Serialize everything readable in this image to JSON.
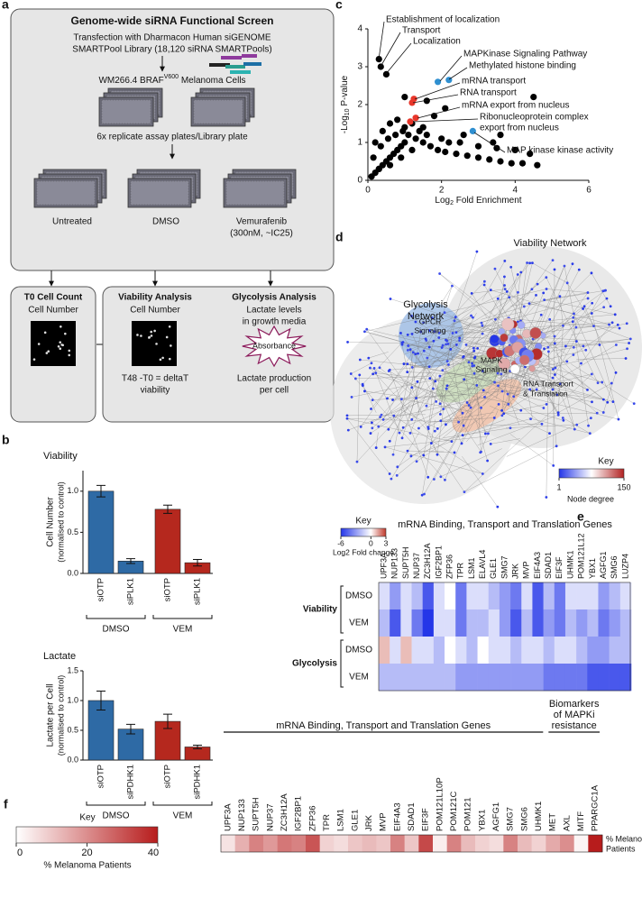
{
  "panel_labels": [
    "a",
    "b",
    "c",
    "d",
    "e",
    "f"
  ],
  "screen": {
    "title": "Genome-wide siRNA Functional Screen",
    "transfection": [
      "Transfection with Dharmacon Human siGENOME",
      "SMARTPool Library (18,120 siRNA SMARTPools)"
    ],
    "cells": {
      "pre": "WM266.4 BRAF",
      "sup": "V600",
      "post": " Melanoma Cells"
    },
    "replicates": "6x replicate assay plates/Library plate",
    "treatments": [
      "Untreated",
      "DMSO",
      "Vemurafenib"
    ],
    "dose": "(300nM, ~IC25)",
    "t0": {
      "title": "T0 Cell Count",
      "text": "Cell Number"
    },
    "viability": {
      "title": "Viability Analysis",
      "lines": [
        "Cell Number",
        "T48 -T0 = deltaT",
        "viability"
      ]
    },
    "glycolysis": {
      "title": "Glycolysis Analysis",
      "lines": [
        "Lactate levels",
        "in growth media",
        "Lactate production",
        "per cell"
      ],
      "badge": "Absorbance"
    }
  },
  "network": {
    "title": "Viability Network",
    "glycolysis": [
      "Glycolysis",
      "Network"
    ],
    "gpcr": [
      "GPCR",
      "Signaling"
    ],
    "mapk": [
      "MAPK",
      "Signaling"
    ],
    "rna": [
      "RNA Transport",
      "& Translation"
    ],
    "key": {
      "title": "Key",
      "zlim": [
        1,
        150
      ],
      "label": "Node degree",
      "colors": [
        "#2436e8",
        "#ffffff",
        "#b22222"
      ]
    }
  },
  "chart_data": [
    {
      "type": "bar",
      "title": "Viability",
      "ylabel": [
        "Cell Number",
        "(normalised to control)"
      ],
      "categories": [
        "siOTP",
        "siPLK1",
        "siOTP",
        "siPLK1"
      ],
      "values": [
        1.0,
        0.15,
        0.78,
        0.13
      ],
      "errors": [
        0.07,
        0.03,
        0.05,
        0.04
      ],
      "colors": [
        "#2e6aa5",
        "#2e6aa5",
        "#b5281e",
        "#b5281e"
      ],
      "groups": [
        "DMSO",
        "VEM"
      ],
      "ylim": [
        0,
        1.25
      ],
      "yticks": [
        {
          "value": 0,
          "label": "0.0"
        },
        0.5,
        {
          "value": 1,
          "label": "1.0"
        }
      ]
    },
    {
      "type": "bar",
      "title": "Lactate",
      "ylabel": [
        "Lactate per Cell",
        "(normalised to control)"
      ],
      "categories": [
        "siOTP",
        "siPDHK1",
        "siOTP",
        "siPDHK1"
      ],
      "values": [
        1.0,
        0.52,
        0.65,
        0.22
      ],
      "errors": [
        0.16,
        0.08,
        0.12,
        0.03
      ],
      "colors": [
        "#2e6aa5",
        "#2e6aa5",
        "#b5281e",
        "#b5281e"
      ],
      "groups": [
        "DMSO",
        "VEM"
      ],
      "ylim": [
        0,
        1.5
      ],
      "yticks": [
        {
          "value": 0,
          "label": "0.0"
        },
        0.5,
        {
          "value": 1,
          "label": "1.0"
        },
        1.5
      ]
    },
    {
      "type": "scatter",
      "xlabel": {
        "pre": "Log",
        "sub": "2",
        "post": " Fold Enrichment"
      },
      "ylabel": {
        "pre": "-Log",
        "sub": "10",
        "post": " P-value"
      },
      "xlim": [
        0,
        6
      ],
      "xticks": [
        0,
        2,
        4,
        6
      ],
      "ylim": [
        0,
        4
      ],
      "yticks": [
        0,
        1,
        2,
        3,
        4
      ],
      "series": [
        {
          "color": "#000000",
          "x": [
            0.1,
            0.2,
            0.3,
            0.4,
            0.5,
            0.6,
            0.7,
            0.8,
            0.9,
            1.0,
            0.15,
            0.35,
            0.55,
            0.75,
            0.95,
            1.1,
            1.3,
            1.5,
            1.7,
            1.9,
            2.1,
            2.4,
            2.7,
            3.0,
            3.3,
            3.6,
            3.9,
            4.2,
            4.6,
            0.2,
            0.4,
            0.6,
            0.8,
            1.0,
            1.2,
            1.4,
            1.6,
            2.0,
            2.5,
            3.0,
            3.5,
            4.0,
            4.4,
            0.3,
            0.6,
            0.9,
            1.2,
            1.5,
            1.8,
            2.2,
            2.6,
            3.4,
            0.3,
            0.35,
            0.5,
            1.0,
            1.6,
            4.5,
            2.1,
            3.6
          ],
          "y": [
            0.1,
            0.2,
            0.3,
            0.4,
            0.5,
            0.6,
            0.7,
            0.8,
            0.9,
            1.0,
            0.6,
            0.9,
            1.1,
            1.2,
            1.3,
            1.2,
            1.1,
            1.0,
            0.9,
            0.8,
            0.75,
            0.7,
            0.65,
            0.6,
            0.55,
            0.5,
            0.45,
            0.45,
            0.4,
            1.0,
            1.3,
            1.5,
            1.6,
            1.4,
            1.5,
            1.3,
            1.2,
            1.1,
            1.0,
            0.9,
            0.85,
            0.8,
            0.7,
            0.3,
            0.4,
            0.6,
            0.8,
            1.4,
            1.7,
            1.0,
            1.2,
            1.0,
            3.2,
            3.0,
            2.8,
            2.2,
            2.1,
            2.2,
            1.9,
            1.2
          ]
        },
        {
          "color": "#2f8fd0",
          "x": [
            1.9,
            2.2,
            2.85
          ],
          "y": [
            2.6,
            2.65,
            1.3
          ]
        },
        {
          "color": "#e8362a",
          "x": [
            1.25,
            1.2,
            1.3,
            1.15
          ],
          "y": [
            2.15,
            2.05,
            1.65,
            1.55
          ]
        }
      ],
      "annotations": [
        {
          "text": "Establishment of localization",
          "color": "#000000"
        },
        {
          "text": "Transport",
          "color": "#000000"
        },
        {
          "text": "Localization",
          "color": "#000000"
        },
        {
          "text": "MAPKinase Signaling Pathway",
          "color": "#1f5f9e"
        },
        {
          "text": "Methylated histone binding",
          "color": "#1f5f9e"
        },
        {
          "text": "mRNA transport",
          "color": "#d62a1e"
        },
        {
          "text": "RNA transport",
          "color": "#d62a1e"
        },
        {
          "text": "mRNA export from nucleus",
          "color": "#d62a1e"
        },
        {
          "text": "Ribonucleoprotein complex",
          "color": "#d62a1e"
        },
        {
          "text": "export from nucleus",
          "color": "#d62a1e"
        },
        {
          "text": "MAP kinase kinase activity",
          "color": "#1f5f9e"
        }
      ]
    },
    {
      "type": "heatmap",
      "title": "mRNA Binding, Transport and Translation Genes",
      "columns": [
        "UPF3A",
        "NUP133",
        "SUPT5H",
        "NUP37",
        "ZC3H12A",
        "IGF2BP1",
        "ZFP36",
        "TPR",
        "LSM1",
        "ELAVL4",
        "GLE1",
        "SMG7",
        "JRK",
        "MVP",
        "EIF4A3",
        "SDAD1",
        "EIF3F",
        "UHMK1",
        "POM121L12",
        "YBX1",
        "AGFG1",
        "SMG6",
        "LUZP4"
      ],
      "row_groups": [
        "Viability",
        "Glycolysis"
      ],
      "rows": [
        "DMSO",
        "VEM",
        "DMSO",
        "VEM"
      ],
      "values": [
        [
          -1,
          -3,
          -1,
          -2,
          -5,
          -1,
          0,
          -4,
          -1,
          -1,
          -2,
          -3,
          -4,
          -1,
          -5,
          -2,
          -4,
          -1,
          -1,
          -1,
          -3,
          -2,
          -1
        ],
        [
          -2,
          -5,
          -1,
          -4,
          -6,
          -1,
          -1,
          -4,
          -2,
          -2,
          -1,
          -3,
          -5,
          -2,
          -5,
          -3,
          -4,
          -2,
          -3,
          -2,
          -4,
          -3,
          -2
        ],
        [
          1,
          -1,
          1,
          -1,
          -1,
          -2,
          0,
          -1,
          -2,
          0,
          -1,
          -1,
          -2,
          -1,
          -1,
          -2,
          -1,
          -1,
          -2,
          -3,
          -3,
          -2,
          -2
        ],
        [
          -2,
          -2,
          -2,
          -2,
          -2,
          -2,
          -2,
          -3,
          -3,
          -3,
          -3,
          -3,
          -3,
          -3,
          -3,
          -4,
          -4,
          -4,
          -4,
          -5,
          -5,
          -5,
          -5
        ]
      ],
      "key_title": "Key",
      "colorbar_label": "Log2 Fold change",
      "zlim": [
        -6,
        3
      ],
      "zticks": [
        -6,
        0,
        3
      ],
      "colors": [
        "#2436e8",
        "#ffffff",
        "#c0392b"
      ]
    },
    {
      "type": "heatmap_groups",
      "column_groups": [
        {
          "title": [
            "mRNA Binding, Transport  and Translation Genes"
          ],
          "columns": [
            "UPF3A",
            "NUP133",
            "SUPT5H",
            "NUP37",
            "ZC3H12A",
            "IGF2BP1",
            "ZFP36",
            "TPR",
            "LSM1",
            "GLE1",
            "JRK",
            "MVP",
            "EIF4A3",
            "SDAD1",
            "EIF3F",
            "POM121L10P",
            "POM121C",
            "POM121",
            "YBX1",
            "AGFG1",
            "SMG7",
            "SMG6",
            "UHMK1"
          ],
          "values": [
            5,
            14,
            22,
            18,
            24,
            22,
            30,
            8,
            6,
            10,
            12,
            10,
            22,
            10,
            32,
            3,
            22,
            12,
            8,
            6,
            22,
            12,
            8
          ]
        },
        {
          "title": [
            "Biomarkers",
            "of MAPKi",
            "resistance"
          ],
          "columns": [
            "MET",
            "AXL",
            "MITF",
            "PPARGC1A"
          ],
          "values": [
            15,
            20,
            2,
            40
          ]
        }
      ],
      "row_label": [
        "% Melanoma",
        "Patients"
      ],
      "key_title": "Key",
      "colorbar_label": "% Melanoma Patients",
      "zlim": [
        0,
        40
      ],
      "zticks": [
        0,
        20,
        40
      ],
      "colors": [
        "#ffffff",
        "#b71c1c"
      ]
    }
  ]
}
